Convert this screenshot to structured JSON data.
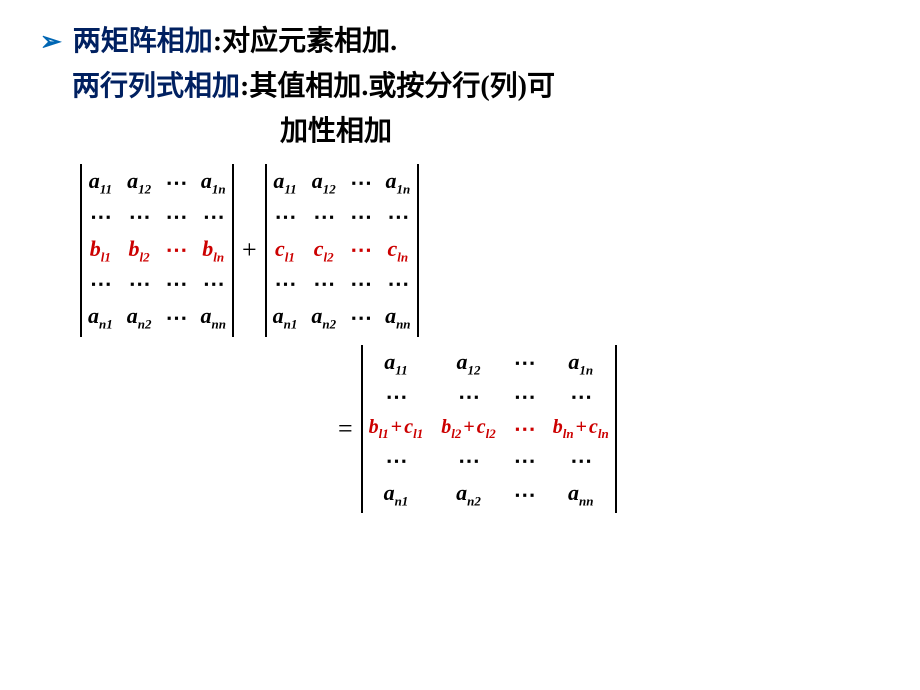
{
  "text": {
    "bullet": "➢",
    "line1a": "两矩阵相加",
    "colon1": ":",
    "line1b": "对应元素相加.",
    "line2a": "两行列式相加",
    "colon2": ":",
    "line2b": "其值相加.或按分行(列)可",
    "line2c": "加性相加"
  },
  "ops": {
    "plus": "+",
    "eq": "="
  },
  "colors": {
    "bullet": "#0066b3",
    "blue": "#002060",
    "black": "#000000",
    "red": "#cc0000",
    "background": "#ffffff"
  },
  "det1": {
    "rows": [
      [
        {
          "t": "a",
          "s": "11"
        },
        {
          "t": "a",
          "s": "12"
        },
        {
          "dots": "⋯"
        },
        {
          "t": "a",
          "s": "1n"
        }
      ],
      [
        {
          "dots": "⋯"
        },
        {
          "dots": "⋯"
        },
        {
          "dots": "⋯"
        },
        {
          "dots": "⋯"
        }
      ],
      [
        {
          "t": "b",
          "s": "l1",
          "red": true
        },
        {
          "t": "b",
          "s": "l2",
          "red": true
        },
        {
          "dots": "⋯",
          "red": true
        },
        {
          "t": "b",
          "s": "ln",
          "red": true
        }
      ],
      [
        {
          "dots": "⋯"
        },
        {
          "dots": "⋯"
        },
        {
          "dots": "⋯"
        },
        {
          "dots": "⋯"
        }
      ],
      [
        {
          "t": "a",
          "s": "n1"
        },
        {
          "t": "a",
          "s": "n2"
        },
        {
          "dots": "⋯"
        },
        {
          "t": "a",
          "s": "nn"
        }
      ]
    ]
  },
  "det2": {
    "rows": [
      [
        {
          "t": "a",
          "s": "11"
        },
        {
          "t": "a",
          "s": "12"
        },
        {
          "dots": "⋯"
        },
        {
          "t": "a",
          "s": "1n"
        }
      ],
      [
        {
          "dots": "⋯"
        },
        {
          "dots": "⋯"
        },
        {
          "dots": "⋯"
        },
        {
          "dots": "⋯"
        }
      ],
      [
        {
          "t": "c",
          "s": "l1",
          "red": true
        },
        {
          "t": "c",
          "s": "l2",
          "red": true
        },
        {
          "dots": "⋯",
          "red": true
        },
        {
          "t": "c",
          "s": "ln",
          "red": true
        }
      ],
      [
        {
          "dots": "⋯"
        },
        {
          "dots": "⋯"
        },
        {
          "dots": "⋯"
        },
        {
          "dots": "⋯"
        }
      ],
      [
        {
          "t": "a",
          "s": "n1"
        },
        {
          "t": "a",
          "s": "n2"
        },
        {
          "dots": "⋯"
        },
        {
          "t": "a",
          "s": "nn"
        }
      ]
    ]
  },
  "det3": {
    "rows": [
      [
        {
          "t": "a",
          "s": "11"
        },
        {
          "t": "a",
          "s": "12"
        },
        {
          "dots": "⋯"
        },
        {
          "t": "a",
          "s": "1n"
        }
      ],
      [
        {
          "dots": "⋯"
        },
        {
          "dots": "⋯"
        },
        {
          "dots": "⋯"
        },
        {
          "dots": "⋯"
        }
      ],
      [
        {
          "sum": [
            {
              "t": "b",
              "s": "l1"
            },
            {
              "t": "c",
              "s": "l1"
            }
          ],
          "red": true
        },
        {
          "sum": [
            {
              "t": "b",
              "s": "l2"
            },
            {
              "t": "c",
              "s": "l2"
            }
          ],
          "red": true
        },
        {
          "dots": "⋯",
          "red": true
        },
        {
          "sum": [
            {
              "t": "b",
              "s": "ln"
            },
            {
              "t": "c",
              "s": "ln"
            }
          ],
          "red": true
        }
      ],
      [
        {
          "dots": "⋯"
        },
        {
          "dots": "⋯"
        },
        {
          "dots": "⋯"
        },
        {
          "dots": "⋯"
        }
      ],
      [
        {
          "t": "a",
          "s": "n1"
        },
        {
          "t": "a",
          "s": "n2"
        },
        {
          "dots": "⋯"
        },
        {
          "t": "a",
          "s": "nn"
        }
      ]
    ]
  }
}
